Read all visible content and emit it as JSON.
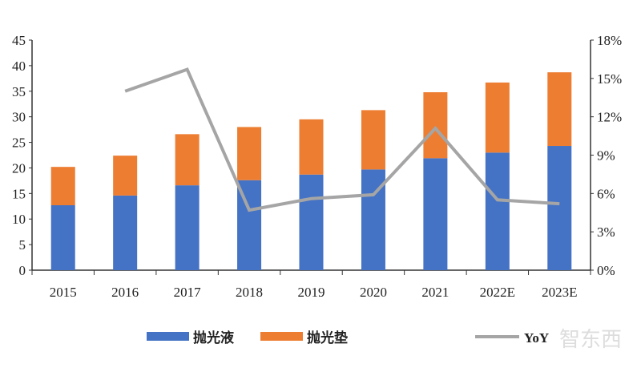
{
  "chart_data": {
    "type": "bar",
    "stacked": true,
    "categories": [
      "2015",
      "2016",
      "2017",
      "2018",
      "2019",
      "2020",
      "2021",
      "2022E",
      "2023E"
    ],
    "series": [
      {
        "name": "抛光液",
        "type": "bar",
        "axis": "left",
        "color": "#4472C4",
        "values": [
          12.7,
          14.6,
          16.6,
          17.6,
          18.7,
          19.7,
          21.9,
          23.0,
          24.3
        ]
      },
      {
        "name": "抛光垫",
        "type": "bar",
        "axis": "left",
        "color": "#ED7D31",
        "values": [
          7.5,
          7.8,
          10.0,
          10.4,
          10.8,
          11.6,
          12.9,
          13.7,
          14.4
        ]
      },
      {
        "name": "YoY",
        "type": "line",
        "axis": "right",
        "color": "#A5A5A5",
        "values": [
          null,
          14.0,
          15.7,
          4.7,
          5.6,
          5.9,
          11.1,
          5.5,
          5.2
        ]
      }
    ],
    "y_left": {
      "range": [
        0,
        45
      ],
      "ticks": [
        "0",
        "5",
        "10",
        "15",
        "20",
        "25",
        "30",
        "35",
        "40",
        "45"
      ]
    },
    "y_right": {
      "range": [
        0,
        18
      ],
      "ticks": [
        "0%",
        "3%",
        "6%",
        "9%",
        "12%",
        "15%",
        "18%"
      ]
    },
    "grid": false,
    "legend": "bottom"
  },
  "watermark": "智东西"
}
